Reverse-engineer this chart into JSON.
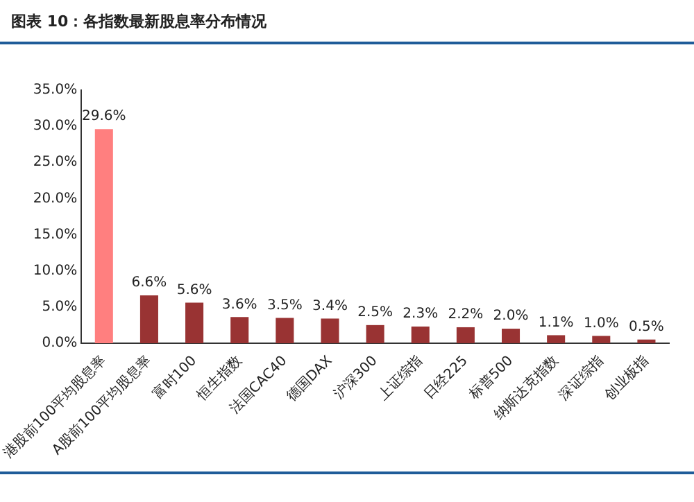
{
  "chart_data": {
    "type": "bar",
    "title": "图表 10：各指数最新股息率分布情况",
    "categories": [
      "港股前100平均股息率",
      "A股前100平均股息率",
      "富时100",
      "恒生指数",
      "法国CAC40",
      "德国DAX",
      "沪深300",
      "上证综指",
      "日经225",
      "标普500",
      "纳斯达克指数",
      "深证综指",
      "创业板指"
    ],
    "series": [
      {
        "values": [
          29.6,
          6.6,
          5.6,
          3.6,
          3.5,
          3.4,
          2.5,
          2.3,
          2.2,
          2.0,
          1.1,
          1.0,
          0.5
        ],
        "colors": [
          "#ff7f7f",
          "#993333",
          "#993333",
          "#993333",
          "#993333",
          "#993333",
          "#993333",
          "#993333",
          "#993333",
          "#993333",
          "#993333",
          "#993333",
          "#993333"
        ],
        "value_labels": [
          "29.6%",
          "6.6%",
          "5.6%",
          "3.6%",
          "3.5%",
          "3.4%",
          "2.5%",
          "2.3%",
          "2.2%",
          "2.0%",
          "1.1%",
          "1.0%",
          "0.5%"
        ]
      }
    ],
    "ylim": [
      0,
      35
    ],
    "yticks": [
      {
        "value": 0,
        "label": "0.0%"
      },
      {
        "value": 5,
        "label": "5.0%"
      },
      {
        "value": 10,
        "label": "10.0%"
      },
      {
        "value": 15,
        "label": "15.0%"
      },
      {
        "value": 20,
        "label": "20.0%"
      },
      {
        "value": 25,
        "label": "25.0%"
      },
      {
        "value": 30,
        "label": "30.0%"
      },
      {
        "value": 35,
        "label": "35.0%"
      }
    ],
    "grid": false,
    "legend": false
  }
}
